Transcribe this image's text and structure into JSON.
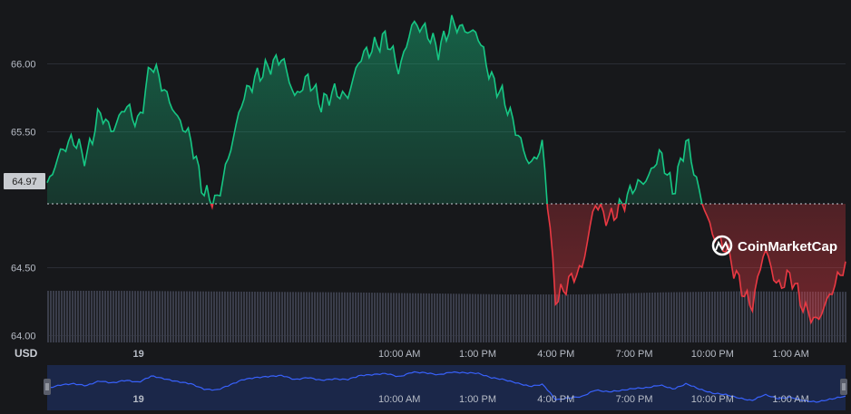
{
  "chart_data": {
    "type": "line",
    "title": "",
    "currency_label": "USD",
    "reference_price": 64.97,
    "reference_label": "64.97",
    "ylim": [
      63.95,
      66.35
    ],
    "y_ticks": [
      "66.00",
      "65.50",
      "64.50",
      "64.00"
    ],
    "x_ticks": [
      "19",
      "10:00 AM",
      "1:00 PM",
      "4:00 PM",
      "7:00 PM",
      "10:00 PM",
      "1:00 AM"
    ],
    "x_range_hours": [
      -3.5,
      27.1
    ],
    "watermark": "CoinMarketCap",
    "colors": {
      "up": "#16c784",
      "down": "#ea3943",
      "navigator": "#3861fb",
      "background": "#17181b"
    },
    "series": [
      {
        "x": [
          -3.5,
          -3.0,
          -2.5,
          -2.0,
          -1.5,
          -1.0,
          -0.5,
          0.0,
          0.5,
          1.0,
          1.5,
          2.0,
          2.5,
          3.0,
          3.5,
          4.0,
          4.5,
          5.0,
          5.5,
          6.0,
          6.5,
          7.0,
          7.5,
          8.0,
          8.5,
          9.0,
          9.5,
          10.0,
          10.5,
          11.0,
          11.5,
          12.0,
          12.5,
          13.0,
          13.5,
          14.0,
          14.5,
          15.0,
          15.5,
          16.0,
          16.5,
          17.0,
          17.5,
          18.0,
          18.5,
          19.0,
          19.5,
          20.0,
          20.5,
          21.0,
          21.5,
          22.0,
          22.5,
          23.0,
          23.5,
          24.0,
          24.5,
          25.0,
          25.5,
          26.0,
          26.5,
          27.0
        ],
        "values": [
          65.1,
          65.35,
          65.45,
          65.3,
          65.65,
          65.5,
          65.7,
          65.55,
          66.02,
          65.8,
          65.6,
          65.45,
          65.05,
          64.98,
          65.35,
          65.75,
          65.9,
          65.98,
          66.05,
          65.75,
          65.9,
          65.7,
          65.8,
          65.75,
          66.05,
          66.12,
          66.2,
          65.95,
          66.3,
          66.25,
          66.1,
          66.3,
          66.25,
          66.22,
          65.9,
          65.75,
          65.5,
          65.25,
          65.4,
          64.25,
          64.4,
          64.5,
          64.98,
          64.85,
          64.95,
          65.1,
          65.15,
          65.35,
          65.05,
          65.45,
          65.05,
          64.75,
          64.65,
          64.4,
          64.2,
          64.65,
          64.35,
          64.45,
          64.2,
          64.1,
          64.3,
          64.5
        ]
      }
    ],
    "volume": {
      "unit": "relative",
      "x": [
        -3.5,
        -1.0,
        2.0,
        5.0,
        8.0,
        11.0,
        14.0,
        17.0,
        20.0,
        23.0,
        27.0
      ],
      "values": [
        1.0,
        1.0,
        0.99,
        0.98,
        0.97,
        0.95,
        0.93,
        0.93,
        0.97,
        0.99,
        0.98
      ]
    },
    "grid": true,
    "legend": "none"
  }
}
